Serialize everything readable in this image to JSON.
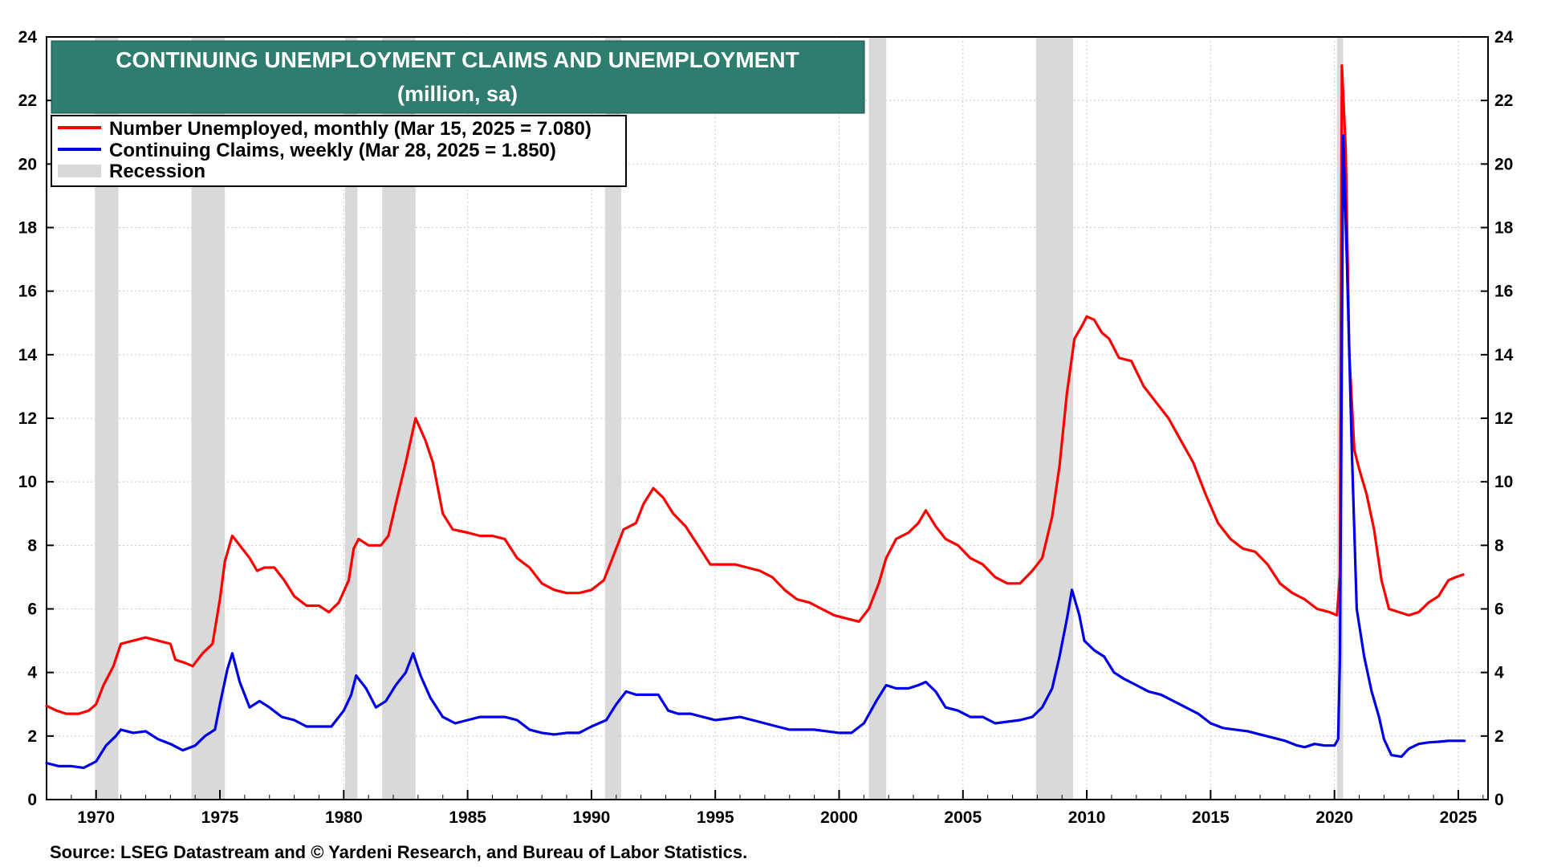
{
  "chart_data": {
    "type": "line",
    "title": "CONTINUING UNEMPLOYMENT CLAIMS AND UNEMPLOYMENT",
    "subtitle": "(million, sa)",
    "xlim": [
      1968,
      2026.2
    ],
    "ylim": [
      0,
      24
    ],
    "x_ticks": [
      "1970",
      "1975",
      "1980",
      "1985",
      "1990",
      "1995",
      "2000",
      "2005",
      "2010",
      "2015",
      "2020",
      "2025"
    ],
    "y_ticks": [
      "0",
      "2",
      "4",
      "6",
      "8",
      "10",
      "12",
      "14",
      "16",
      "18",
      "20",
      "22",
      "24"
    ],
    "grid": true,
    "legend_position": "top-left",
    "colors": {
      "unemployed": "#ff0000",
      "claims": "#0000e6",
      "recession": "#d9d9d9",
      "title_bg": "#2e7d6e"
    },
    "legend": [
      {
        "label": "Number Unemployed, monthly (Mar 15, 2025 = 7.080)",
        "swatch": "line",
        "color": "#ff0000"
      },
      {
        "label": "Continuing Claims, weekly (Mar 28, 2025 = 1.850)",
        "swatch": "line",
        "color": "#0000e6"
      },
      {
        "label": "Recession",
        "swatch": "box",
        "color": "#d9d9d9"
      }
    ],
    "recessions": [
      [
        1969.95,
        1970.9
      ],
      [
        1973.85,
        1975.2
      ],
      [
        1980.05,
        1980.55
      ],
      [
        1981.55,
        1982.9
      ],
      [
        1990.55,
        1991.2
      ],
      [
        2001.2,
        2001.9
      ],
      [
        2007.95,
        2009.45
      ],
      [
        2020.1,
        2020.35
      ]
    ],
    "series": [
      {
        "name": "Number Unemployed, monthly",
        "key": "unemployed",
        "points": [
          [
            1968.0,
            2.95
          ],
          [
            1968.4,
            2.8
          ],
          [
            1968.8,
            2.7
          ],
          [
            1969.3,
            2.7
          ],
          [
            1969.7,
            2.8
          ],
          [
            1970.0,
            3.0
          ],
          [
            1970.3,
            3.6
          ],
          [
            1970.7,
            4.2
          ],
          [
            1971.0,
            4.9
          ],
          [
            1971.5,
            5.0
          ],
          [
            1972.0,
            5.1
          ],
          [
            1972.5,
            5.0
          ],
          [
            1973.0,
            4.9
          ],
          [
            1973.2,
            4.4
          ],
          [
            1973.6,
            4.3
          ],
          [
            1973.9,
            4.2
          ],
          [
            1974.3,
            4.6
          ],
          [
            1974.7,
            4.9
          ],
          [
            1975.0,
            6.3
          ],
          [
            1975.2,
            7.5
          ],
          [
            1975.5,
            8.3
          ],
          [
            1975.9,
            7.9
          ],
          [
            1976.2,
            7.6
          ],
          [
            1976.5,
            7.2
          ],
          [
            1976.8,
            7.3
          ],
          [
            1977.2,
            7.3
          ],
          [
            1977.6,
            6.9
          ],
          [
            1978.0,
            6.4
          ],
          [
            1978.5,
            6.1
          ],
          [
            1979.0,
            6.1
          ],
          [
            1979.4,
            5.9
          ],
          [
            1979.8,
            6.2
          ],
          [
            1980.2,
            6.9
          ],
          [
            1980.4,
            7.9
          ],
          [
            1980.6,
            8.2
          ],
          [
            1981.0,
            8.0
          ],
          [
            1981.5,
            8.0
          ],
          [
            1981.8,
            8.3
          ],
          [
            1982.1,
            9.3
          ],
          [
            1982.5,
            10.6
          ],
          [
            1982.9,
            12.0
          ],
          [
            1983.3,
            11.3
          ],
          [
            1983.6,
            10.6
          ],
          [
            1984.0,
            9.0
          ],
          [
            1984.4,
            8.5
          ],
          [
            1985.0,
            8.4
          ],
          [
            1985.5,
            8.3
          ],
          [
            1986.0,
            8.3
          ],
          [
            1986.5,
            8.2
          ],
          [
            1987.0,
            7.6
          ],
          [
            1987.5,
            7.3
          ],
          [
            1988.0,
            6.8
          ],
          [
            1988.5,
            6.6
          ],
          [
            1989.0,
            6.5
          ],
          [
            1989.5,
            6.5
          ],
          [
            1990.0,
            6.6
          ],
          [
            1990.5,
            6.9
          ],
          [
            1990.9,
            7.7
          ],
          [
            1991.3,
            8.5
          ],
          [
            1991.8,
            8.7
          ],
          [
            1992.1,
            9.3
          ],
          [
            1992.5,
            9.8
          ],
          [
            1992.9,
            9.5
          ],
          [
            1993.3,
            9.0
          ],
          [
            1993.8,
            8.6
          ],
          [
            1994.3,
            8.0
          ],
          [
            1994.8,
            7.4
          ],
          [
            1995.3,
            7.4
          ],
          [
            1995.8,
            7.4
          ],
          [
            1996.3,
            7.3
          ],
          [
            1996.8,
            7.2
          ],
          [
            1997.3,
            7.0
          ],
          [
            1997.8,
            6.6
          ],
          [
            1998.3,
            6.3
          ],
          [
            1998.8,
            6.2
          ],
          [
            1999.3,
            6.0
          ],
          [
            1999.8,
            5.8
          ],
          [
            2000.3,
            5.7
          ],
          [
            2000.8,
            5.6
          ],
          [
            2001.2,
            6.0
          ],
          [
            2001.6,
            6.8
          ],
          [
            2001.9,
            7.6
          ],
          [
            2002.3,
            8.2
          ],
          [
            2002.8,
            8.4
          ],
          [
            2003.2,
            8.7
          ],
          [
            2003.5,
            9.1
          ],
          [
            2003.9,
            8.6
          ],
          [
            2004.3,
            8.2
          ],
          [
            2004.8,
            8.0
          ],
          [
            2005.3,
            7.6
          ],
          [
            2005.8,
            7.4
          ],
          [
            2006.3,
            7.0
          ],
          [
            2006.8,
            6.8
          ],
          [
            2007.3,
            6.8
          ],
          [
            2007.8,
            7.2
          ],
          [
            2008.2,
            7.6
          ],
          [
            2008.6,
            8.9
          ],
          [
            2008.9,
            10.5
          ],
          [
            2009.2,
            12.8
          ],
          [
            2009.5,
            14.5
          ],
          [
            2009.8,
            14.9
          ],
          [
            2010.0,
            15.2
          ],
          [
            2010.3,
            15.1
          ],
          [
            2010.6,
            14.7
          ],
          [
            2010.9,
            14.5
          ],
          [
            2011.3,
            13.9
          ],
          [
            2011.8,
            13.8
          ],
          [
            2012.3,
            13.0
          ],
          [
            2012.8,
            12.5
          ],
          [
            2013.3,
            12.0
          ],
          [
            2013.8,
            11.3
          ],
          [
            2014.3,
            10.6
          ],
          [
            2014.8,
            9.6
          ],
          [
            2015.3,
            8.7
          ],
          [
            2015.8,
            8.2
          ],
          [
            2016.3,
            7.9
          ],
          [
            2016.8,
            7.8
          ],
          [
            2017.3,
            7.4
          ],
          [
            2017.8,
            6.8
          ],
          [
            2018.3,
            6.5
          ],
          [
            2018.8,
            6.3
          ],
          [
            2019.3,
            6.0
          ],
          [
            2019.8,
            5.9
          ],
          [
            2020.1,
            5.8
          ],
          [
            2020.22,
            7.1
          ],
          [
            2020.3,
            23.1
          ],
          [
            2020.45,
            20.5
          ],
          [
            2020.6,
            14.0
          ],
          [
            2020.8,
            11.0
          ],
          [
            2021.0,
            10.4
          ],
          [
            2021.3,
            9.6
          ],
          [
            2021.6,
            8.5
          ],
          [
            2021.9,
            6.9
          ],
          [
            2022.2,
            6.0
          ],
          [
            2022.6,
            5.9
          ],
          [
            2023.0,
            5.8
          ],
          [
            2023.4,
            5.9
          ],
          [
            2023.8,
            6.2
          ],
          [
            2024.2,
            6.4
          ],
          [
            2024.6,
            6.9
          ],
          [
            2024.9,
            7.0
          ],
          [
            2025.2,
            7.08
          ]
        ]
      },
      {
        "name": "Continuing Claims, weekly",
        "key": "claims",
        "points": [
          [
            1968.0,
            1.15
          ],
          [
            1968.5,
            1.05
          ],
          [
            1969.0,
            1.05
          ],
          [
            1969.5,
            1.0
          ],
          [
            1970.0,
            1.2
          ],
          [
            1970.4,
            1.7
          ],
          [
            1970.8,
            2.0
          ],
          [
            1971.0,
            2.2
          ],
          [
            1971.5,
            2.1
          ],
          [
            1972.0,
            2.15
          ],
          [
            1972.5,
            1.9
          ],
          [
            1973.0,
            1.75
          ],
          [
            1973.5,
            1.55
          ],
          [
            1974.0,
            1.7
          ],
          [
            1974.4,
            2.0
          ],
          [
            1974.8,
            2.2
          ],
          [
            1975.0,
            3.0
          ],
          [
            1975.3,
            4.1
          ],
          [
            1975.5,
            4.6
          ],
          [
            1975.8,
            3.7
          ],
          [
            1976.2,
            2.9
          ],
          [
            1976.6,
            3.1
          ],
          [
            1977.0,
            2.9
          ],
          [
            1977.5,
            2.6
          ],
          [
            1978.0,
            2.5
          ],
          [
            1978.5,
            2.3
          ],
          [
            1979.0,
            2.3
          ],
          [
            1979.5,
            2.3
          ],
          [
            1980.0,
            2.8
          ],
          [
            1980.3,
            3.3
          ],
          [
            1980.5,
            3.9
          ],
          [
            1980.9,
            3.5
          ],
          [
            1981.3,
            2.9
          ],
          [
            1981.7,
            3.1
          ],
          [
            1982.1,
            3.6
          ],
          [
            1982.5,
            4.0
          ],
          [
            1982.8,
            4.6
          ],
          [
            1983.1,
            3.9
          ],
          [
            1983.5,
            3.2
          ],
          [
            1984.0,
            2.6
          ],
          [
            1984.5,
            2.4
          ],
          [
            1985.0,
            2.5
          ],
          [
            1985.5,
            2.6
          ],
          [
            1986.0,
            2.6
          ],
          [
            1986.5,
            2.6
          ],
          [
            1987.0,
            2.5
          ],
          [
            1987.5,
            2.2
          ],
          [
            1988.0,
            2.1
          ],
          [
            1988.5,
            2.05
          ],
          [
            1989.0,
            2.1
          ],
          [
            1989.5,
            2.1
          ],
          [
            1990.0,
            2.3
          ],
          [
            1990.6,
            2.5
          ],
          [
            1991.0,
            3.0
          ],
          [
            1991.4,
            3.4
          ],
          [
            1991.8,
            3.3
          ],
          [
            1992.2,
            3.3
          ],
          [
            1992.7,
            3.3
          ],
          [
            1993.1,
            2.8
          ],
          [
            1993.5,
            2.7
          ],
          [
            1994.0,
            2.7
          ],
          [
            1994.5,
            2.6
          ],
          [
            1995.0,
            2.5
          ],
          [
            1995.5,
            2.55
          ],
          [
            1996.0,
            2.6
          ],
          [
            1996.5,
            2.5
          ],
          [
            1997.0,
            2.4
          ],
          [
            1997.5,
            2.3
          ],
          [
            1998.0,
            2.2
          ],
          [
            1998.5,
            2.2
          ],
          [
            1999.0,
            2.2
          ],
          [
            1999.5,
            2.15
          ],
          [
            2000.0,
            2.1
          ],
          [
            2000.5,
            2.1
          ],
          [
            2001.0,
            2.4
          ],
          [
            2001.5,
            3.1
          ],
          [
            2001.9,
            3.6
          ],
          [
            2002.3,
            3.5
          ],
          [
            2002.8,
            3.5
          ],
          [
            2003.2,
            3.6
          ],
          [
            2003.5,
            3.7
          ],
          [
            2003.9,
            3.4
          ],
          [
            2004.3,
            2.9
          ],
          [
            2004.8,
            2.8
          ],
          [
            2005.3,
            2.6
          ],
          [
            2005.8,
            2.6
          ],
          [
            2006.3,
            2.4
          ],
          [
            2006.8,
            2.45
          ],
          [
            2007.3,
            2.5
          ],
          [
            2007.8,
            2.6
          ],
          [
            2008.2,
            2.9
          ],
          [
            2008.6,
            3.5
          ],
          [
            2008.9,
            4.5
          ],
          [
            2009.2,
            5.7
          ],
          [
            2009.4,
            6.6
          ],
          [
            2009.7,
            5.8
          ],
          [
            2009.9,
            5.0
          ],
          [
            2010.3,
            4.7
          ],
          [
            2010.7,
            4.5
          ],
          [
            2011.1,
            4.0
          ],
          [
            2011.5,
            3.8
          ],
          [
            2012.0,
            3.6
          ],
          [
            2012.5,
            3.4
          ],
          [
            2013.0,
            3.3
          ],
          [
            2013.5,
            3.1
          ],
          [
            2014.0,
            2.9
          ],
          [
            2014.5,
            2.7
          ],
          [
            2015.0,
            2.4
          ],
          [
            2015.5,
            2.25
          ],
          [
            2016.0,
            2.2
          ],
          [
            2016.5,
            2.15
          ],
          [
            2017.0,
            2.05
          ],
          [
            2017.5,
            1.95
          ],
          [
            2018.0,
            1.85
          ],
          [
            2018.5,
            1.7
          ],
          [
            2018.8,
            1.65
          ],
          [
            2019.2,
            1.75
          ],
          [
            2019.6,
            1.7
          ],
          [
            2020.0,
            1.7
          ],
          [
            2020.15,
            1.9
          ],
          [
            2020.22,
            4.5
          ],
          [
            2020.35,
            20.9
          ],
          [
            2020.5,
            17.0
          ],
          [
            2020.7,
            11.0
          ],
          [
            2020.9,
            6.0
          ],
          [
            2021.2,
            4.5
          ],
          [
            2021.5,
            3.4
          ],
          [
            2021.8,
            2.6
          ],
          [
            2022.0,
            1.9
          ],
          [
            2022.3,
            1.4
          ],
          [
            2022.7,
            1.35
          ],
          [
            2023.0,
            1.6
          ],
          [
            2023.4,
            1.75
          ],
          [
            2023.8,
            1.8
          ],
          [
            2024.2,
            1.82
          ],
          [
            2024.6,
            1.85
          ],
          [
            2025.25,
            1.85
          ]
        ]
      }
    ]
  },
  "source": "Source: LSEG Datastream and © Yardeni Research, and Bureau of Labor Statistics."
}
